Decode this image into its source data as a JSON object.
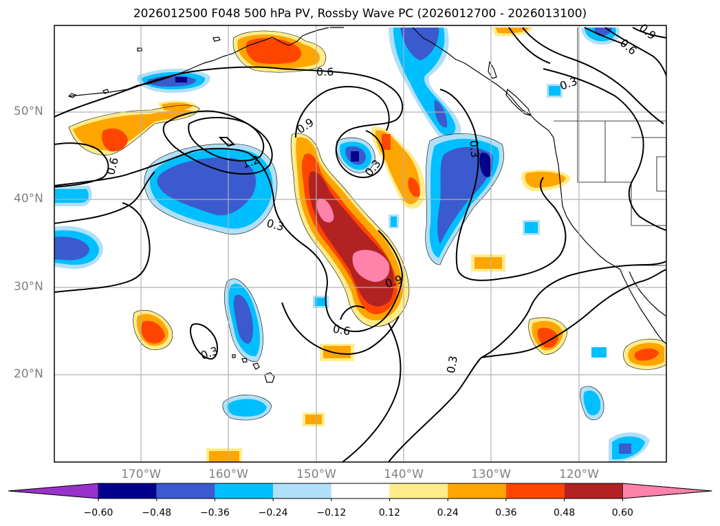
{
  "title": "2026012500 F048 500 hPa PV, Rossby Wave PC (2026012700 - 2026013100)",
  "lat_labels": [
    "50°N",
    "40°N",
    "30°N",
    "20°N"
  ],
  "lon_labels": [
    "170°W",
    "160°W",
    "150°W",
    "140°W",
    "130°W",
    "120°W"
  ],
  "contour_labels": [
    "0.6",
    "0.9",
    "1.2",
    "0.3",
    "0.9",
    "0.6",
    "0.3",
    "0.6",
    "0.3",
    "0.3",
    "0.3",
    "0.6",
    "0.9",
    "0.3"
  ],
  "colorbar": {
    "ticks": [
      "−0.60",
      "−0.48",
      "−0.36",
      "−0.24",
      "−0.12",
      "0.12",
      "0.24",
      "0.36",
      "0.48",
      "0.60"
    ],
    "colors": [
      "#9932cc",
      "#00008b",
      "#3a5acd",
      "#00bfff",
      "#b0e0f8",
      "#ffffff",
      "#ffec8b",
      "#ffa500",
      "#ff4500",
      "#b22222",
      "#ff82ab"
    ]
  }
}
